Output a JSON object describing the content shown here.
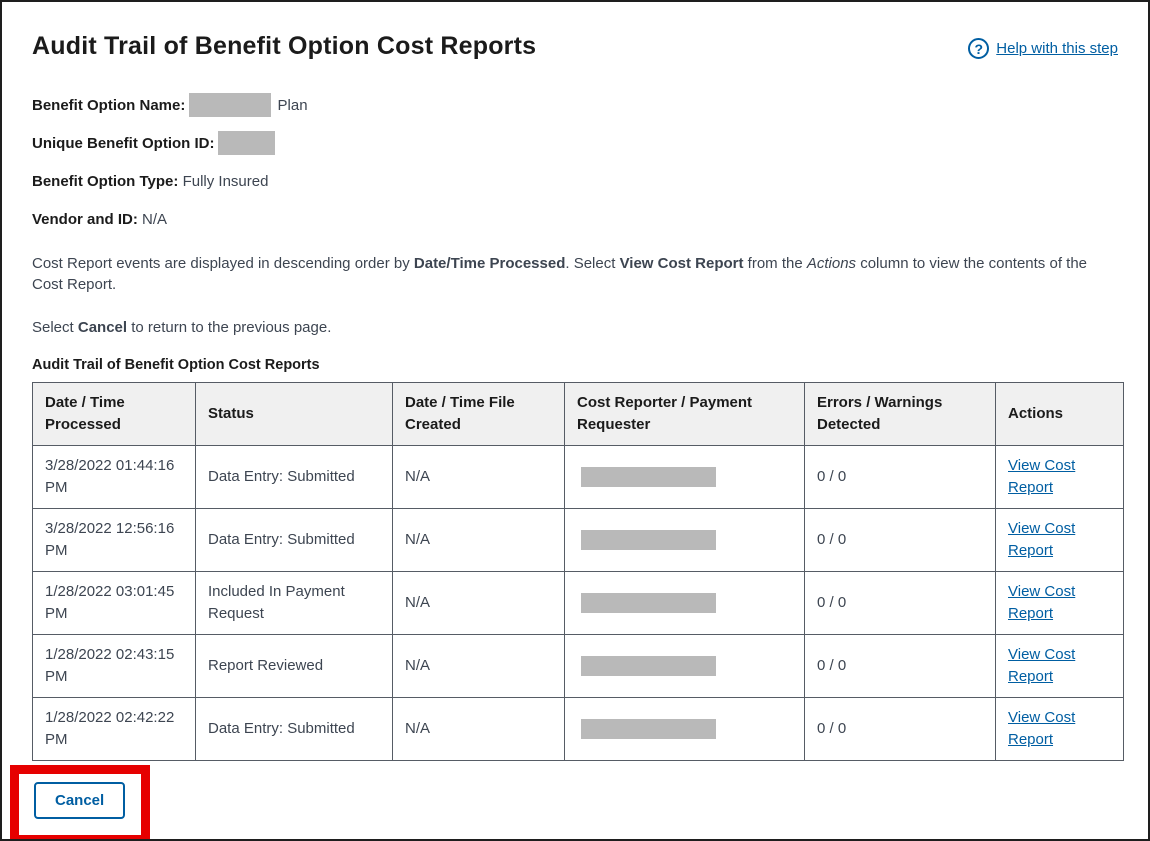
{
  "header": {
    "title": "Audit Trail of Benefit Option Cost Reports",
    "help_link_label": "Help with this step",
    "help_icon": "question-circle-icon",
    "help_icon_glyph": "?"
  },
  "benefit_details": {
    "name_label": "Benefit Option Name:",
    "name_value_redacted": true,
    "name_suffix": "Plan",
    "id_label": "Unique Benefit Option ID:",
    "id_value_redacted": true,
    "type_label": "Benefit Option Type:",
    "type_value": "Fully Insured",
    "vendor_label": "Vendor and ID:",
    "vendor_value": "N/A"
  },
  "instructions": {
    "p1": [
      "Cost Report events are displayed in descending order by ",
      "Date/Time Processed",
      ". Select ",
      "View Cost Report",
      " from the ",
      "Actions",
      " column to view the contents of the Cost Report."
    ],
    "p2": [
      "Select ",
      "Cancel",
      " to return to the previous page."
    ]
  },
  "table": {
    "caption": "Audit Trail of Benefit Option Cost Reports",
    "columns": [
      "Date / Time Processed",
      "Status",
      "Date / Time File Created",
      "Cost Reporter / Payment Requester",
      "Errors / Warnings Detected",
      "Actions"
    ],
    "rows": [
      {
        "processed": "3/28/2022 01:44:16 PM",
        "status": "Data Entry: Submitted",
        "created": "N/A",
        "reporter_redacted": true,
        "errors": "0 / 0",
        "action": "View Cost Report"
      },
      {
        "processed": "3/28/2022 12:56:16 PM",
        "status": "Data Entry: Submitted",
        "created": "N/A",
        "reporter_redacted": true,
        "errors": "0 / 0",
        "action": "View Cost Report"
      },
      {
        "processed": "1/28/2022 03:01:45 PM",
        "status": "Included In Payment Request",
        "created": "N/A",
        "reporter_redacted": true,
        "errors": "0 / 0",
        "action": "View Cost Report"
      },
      {
        "processed": "1/28/2022 02:43:15 PM",
        "status": "Report Reviewed",
        "created": "N/A",
        "reporter_redacted": true,
        "errors": "0 / 0",
        "action": "View Cost Report"
      },
      {
        "processed": "1/28/2022 02:42:22 PM",
        "status": "Data Entry: Submitted",
        "created": "N/A",
        "reporter_redacted": true,
        "errors": "0 / 0",
        "action": "View Cost Report"
      }
    ]
  },
  "actions": {
    "cancel_label": "Cancel"
  },
  "colors": {
    "link_blue": "#005ea2",
    "annotation_red": "#e60000",
    "redaction_gray": "#b9b9b9",
    "table_header_bg": "#f0f0f0",
    "table_border": "#565c65",
    "text_dark": "#1b1b1b",
    "text_body": "#3d4551"
  }
}
